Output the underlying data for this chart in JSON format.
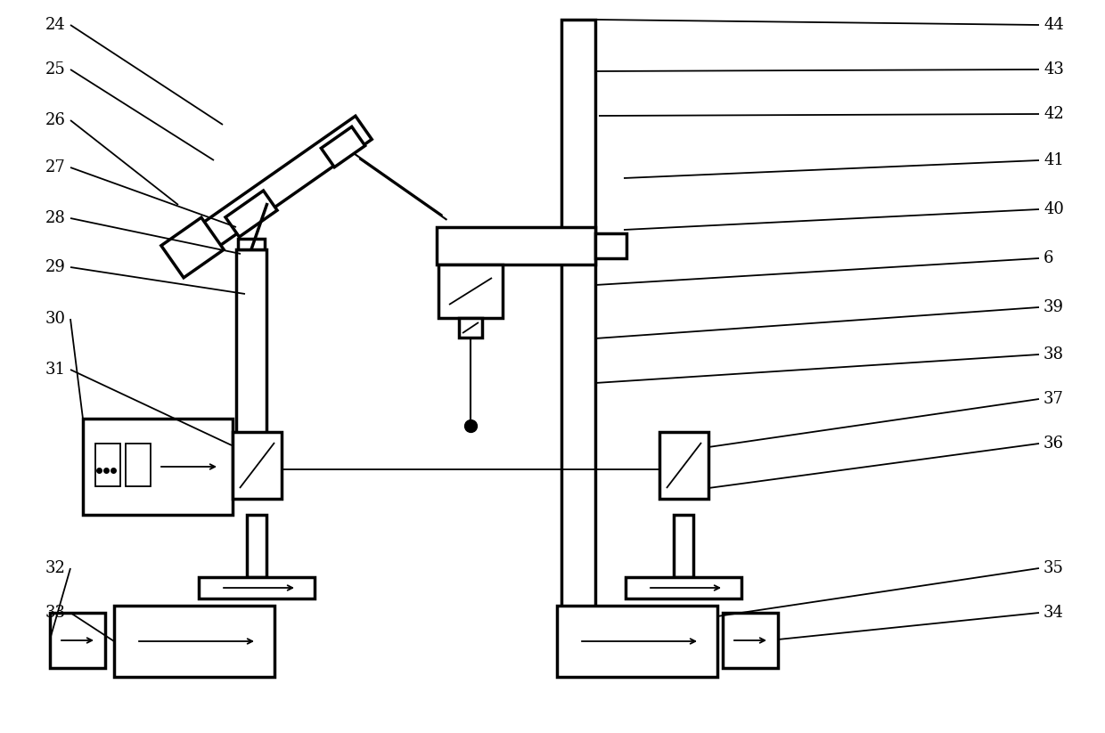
{
  "bg_color": "#ffffff",
  "lc": "#000000",
  "lw": 2.5,
  "tlw": 1.3,
  "fs": 13,
  "fig_w": 12.4,
  "fig_h": 8.23,
  "dpi": 100,
  "labels_left": [
    [
      "24",
      55,
      28
    ],
    [
      "25",
      55,
      78
    ],
    [
      "26",
      55,
      135
    ],
    [
      "27",
      55,
      188
    ],
    [
      "28",
      55,
      245
    ],
    [
      "29",
      55,
      300
    ],
    [
      "30",
      55,
      358
    ],
    [
      "31",
      55,
      415
    ],
    [
      "32",
      55,
      638
    ],
    [
      "33",
      55,
      688
    ]
  ],
  "labels_right": [
    [
      "44",
      1185,
      28
    ],
    [
      "43",
      1185,
      78
    ],
    [
      "42",
      1185,
      128
    ],
    [
      "41",
      1185,
      180
    ],
    [
      "40",
      1185,
      235
    ],
    [
      "6",
      1185,
      290
    ],
    [
      "39",
      1185,
      345
    ],
    [
      "38",
      1185,
      398
    ],
    [
      "37",
      1185,
      448
    ],
    [
      "36",
      1185,
      498
    ],
    [
      "35",
      1185,
      638
    ],
    [
      "34",
      1185,
      688
    ]
  ]
}
